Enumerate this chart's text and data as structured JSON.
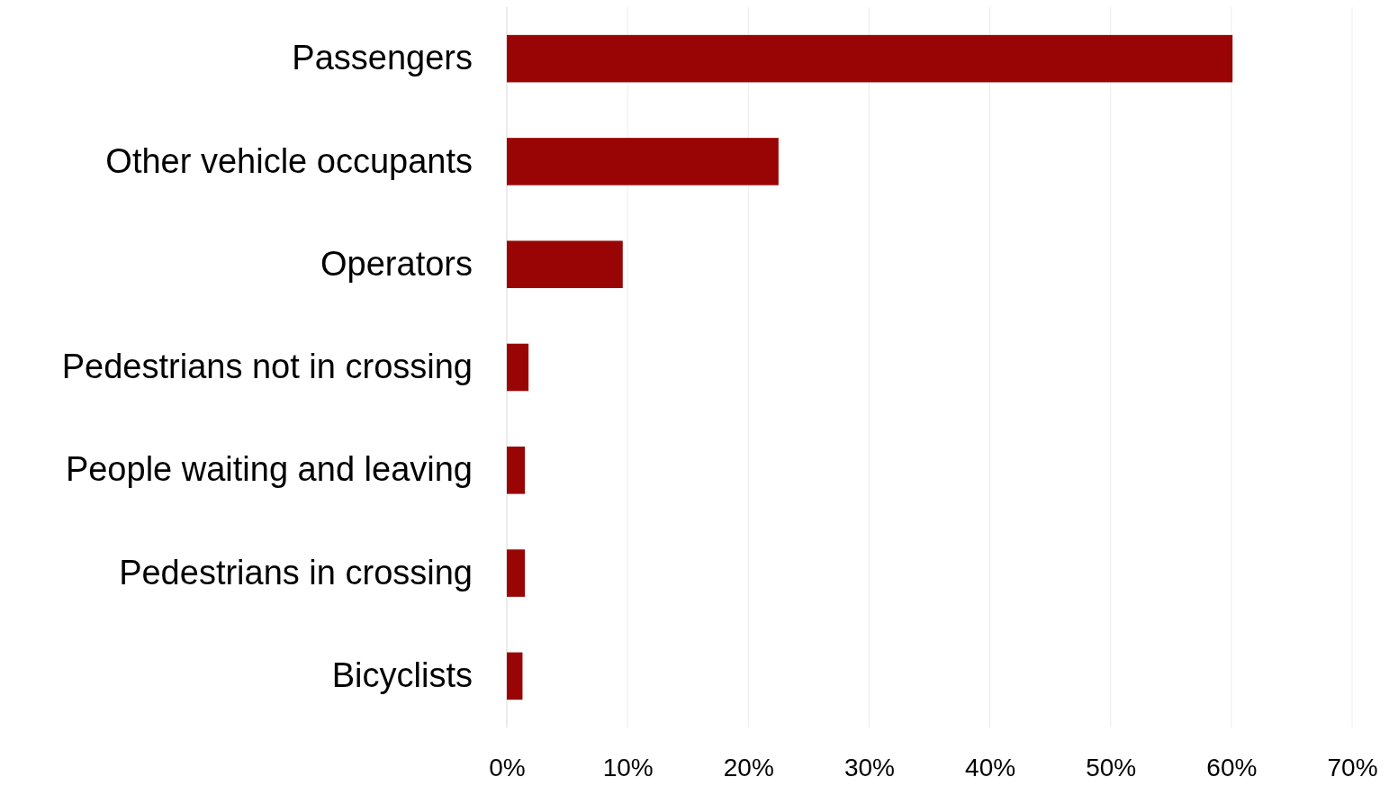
{
  "chart_data": {
    "type": "bar",
    "orientation": "horizontal",
    "categories": [
      "Passengers",
      "Other vehicle occupants",
      "Operators",
      "Pedestrians not in crossing",
      "People waiting and leaving",
      "Pedestrians in crossing",
      "Bicyclists"
    ],
    "values": [
      60.1,
      22.5,
      9.6,
      1.8,
      1.5,
      1.5,
      1.3
    ],
    "color": "#990505",
    "xlim": [
      0,
      70
    ],
    "xticks": [
      {
        "value": 0,
        "label": "0%"
      },
      {
        "value": 10,
        "label": "10%"
      },
      {
        "value": 20,
        "label": "20%"
      },
      {
        "value": 30,
        "label": "30%"
      },
      {
        "value": 40,
        "label": "40%"
      },
      {
        "value": 50,
        "label": "50%"
      },
      {
        "value": 60,
        "label": "60%"
      },
      {
        "value": 70,
        "label": "70%"
      }
    ],
    "grid": "x"
  }
}
